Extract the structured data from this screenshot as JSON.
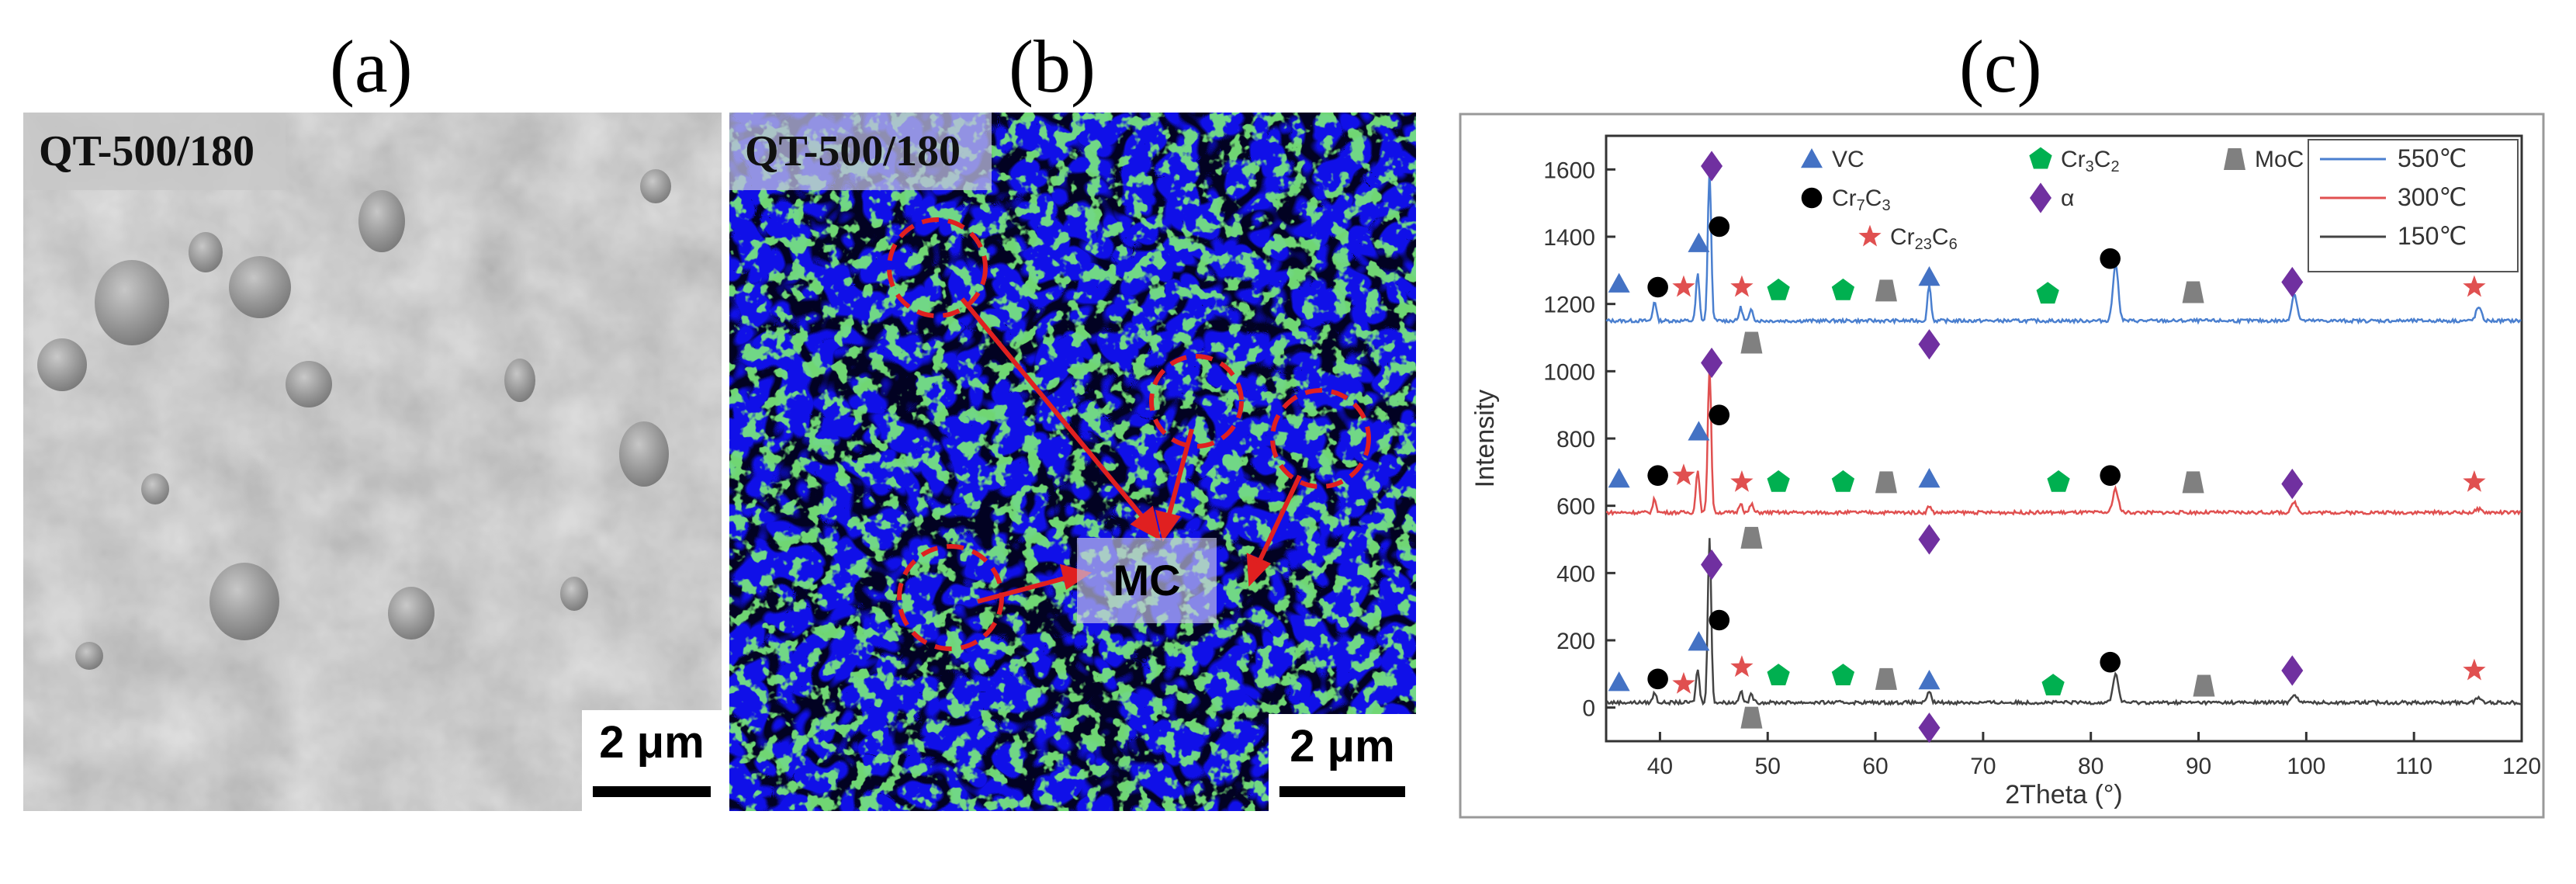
{
  "panels": {
    "a": {
      "label": "(a)",
      "sample": "QT-500/180",
      "scale": "2 μm"
    },
    "b": {
      "label": "(b)",
      "sample": "QT-500/180",
      "scale": "2 μm",
      "annotation": "MC"
    },
    "c": {
      "label": "(c)"
    }
  },
  "chart_data": {
    "type": "line",
    "xlabel": "2Theta (°)",
    "ylabel": "Intensity",
    "xlim": [
      35,
      120
    ],
    "ylim": [
      -100,
      1700
    ],
    "xticks": [
      40,
      50,
      60,
      70,
      80,
      90,
      100,
      110,
      120
    ],
    "yticks": [
      0,
      200,
      400,
      600,
      800,
      1000,
      1200,
      1400,
      1600
    ],
    "grid": false,
    "legend_position": "top-right",
    "series": [
      {
        "name": "550℃",
        "color": "#4a7fcf",
        "baseline": 1150,
        "peaks": [
          [
            39.5,
            60
          ],
          [
            43.5,
            140
          ],
          [
            44.6,
            450
          ],
          [
            47.5,
            40
          ],
          [
            48.5,
            35
          ],
          [
            65,
            110
          ],
          [
            82.3,
            170
          ],
          [
            98.9,
            80
          ],
          [
            116,
            40
          ]
        ]
      },
      {
        "name": "300℃",
        "color": "#e05050",
        "baseline": 580,
        "peaks": [
          [
            39.5,
            40
          ],
          [
            43.5,
            130
          ],
          [
            44.6,
            440
          ],
          [
            47.5,
            30
          ],
          [
            48.5,
            25
          ],
          [
            65,
            20
          ],
          [
            82.3,
            70
          ],
          [
            98.9,
            30
          ],
          [
            116,
            10
          ]
        ]
      },
      {
        "name": "150℃",
        "color": "#444444",
        "baseline": 15,
        "peaks": [
          [
            39.5,
            30
          ],
          [
            43.5,
            100
          ],
          [
            44.6,
            490
          ],
          [
            47.5,
            35
          ],
          [
            48.5,
            25
          ],
          [
            65,
            35
          ],
          [
            82.3,
            85
          ],
          [
            98.9,
            25
          ],
          [
            116,
            15
          ]
        ]
      }
    ],
    "phase_legend": [
      {
        "label": "VC",
        "marker": "triangle",
        "color": "#4472c4"
      },
      {
        "label": "Cr7C3",
        "marker": "circle",
        "color": "#000000"
      },
      {
        "label": "Cr23C6",
        "marker": "star",
        "color": "#e05050"
      },
      {
        "label": "Cr3C2",
        "marker": "pentagon",
        "color": "#00b050"
      },
      {
        "label": "α",
        "marker": "diamond",
        "color": "#7030a0"
      },
      {
        "label": "MoC",
        "marker": "trapezoid",
        "color": "#808080"
      }
    ],
    "phase_markers": [
      {
        "phase": "VC",
        "points": [
          [
            36.2,
            1260
          ],
          [
            43.6,
            1380
          ],
          [
            65,
            1280
          ],
          [
            36.2,
            680
          ],
          [
            43.6,
            820
          ],
          [
            65,
            680
          ],
          [
            36.2,
            75
          ],
          [
            43.6,
            195
          ],
          [
            65,
            80
          ]
        ]
      },
      {
        "phase": "Cr7C3",
        "points": [
          [
            39.8,
            1250
          ],
          [
            45.5,
            1430
          ],
          [
            81.8,
            1335
          ],
          [
            39.8,
            690
          ],
          [
            45.5,
            870
          ],
          [
            81.8,
            690
          ],
          [
            39.8,
            85
          ],
          [
            45.5,
            260
          ],
          [
            81.8,
            135
          ]
        ]
      },
      {
        "phase": "Cr23C6",
        "points": [
          [
            42.2,
            1250
          ],
          [
            47.6,
            1250
          ],
          [
            115.6,
            1250
          ],
          [
            42.2,
            690
          ],
          [
            47.6,
            670
          ],
          [
            115.6,
            670
          ],
          [
            42.2,
            70
          ],
          [
            47.6,
            120
          ],
          [
            115.6,
            110
          ]
        ]
      },
      {
        "phase": "Cr3C2",
        "points": [
          [
            51,
            1240
          ],
          [
            57,
            1240
          ],
          [
            76,
            1230
          ],
          [
            51,
            670
          ],
          [
            57,
            670
          ],
          [
            77,
            670
          ],
          [
            51,
            95
          ],
          [
            57,
            95
          ],
          [
            76.5,
            65
          ]
        ]
      },
      {
        "phase": "α",
        "points": [
          [
            44.8,
            1610
          ],
          [
            65,
            1080
          ],
          [
            98.7,
            1265
          ],
          [
            44.8,
            1025
          ],
          [
            65,
            500
          ],
          [
            98.7,
            665
          ],
          [
            44.8,
            425
          ],
          [
            65,
            -60
          ],
          [
            98.7,
            110
          ]
        ]
      },
      {
        "phase": "MoC",
        "points": [
          [
            61,
            1240
          ],
          [
            89.5,
            1235
          ],
          [
            48.5,
            1085
          ],
          [
            61,
            670
          ],
          [
            89.5,
            670
          ],
          [
            48.5,
            505
          ],
          [
            61,
            85
          ],
          [
            90.5,
            65
          ],
          [
            48.5,
            -30
          ]
        ]
      }
    ]
  }
}
